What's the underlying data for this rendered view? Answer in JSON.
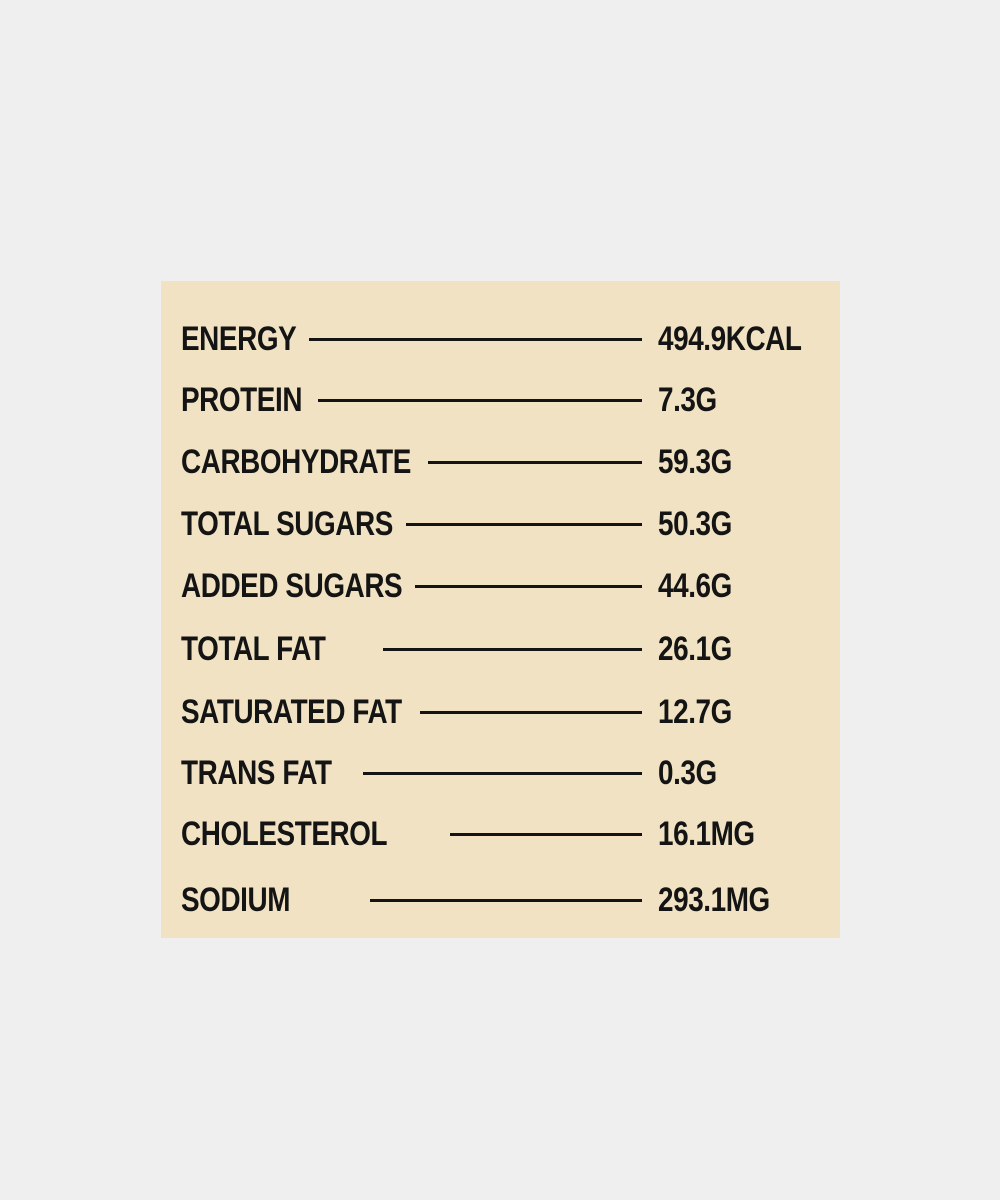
{
  "nutrition": {
    "rows": [
      {
        "label": "ENERGY",
        "value": "494.9KCAL"
      },
      {
        "label": "PROTEIN",
        "value": "7.3G"
      },
      {
        "label": "CARBOHYDRATE",
        "value": "59.3G"
      },
      {
        "label": "TOTAL SUGARS",
        "value": "50.3G"
      },
      {
        "label": "ADDED SUGARS",
        "value": "44.6G"
      },
      {
        "label": "TOTAL FAT",
        "value": "26.1G"
      },
      {
        "label": "SATURATED FAT",
        "value": "12.7G"
      },
      {
        "label": "TRANS FAT",
        "value": "0.3G"
      },
      {
        "label": "CHOLESTEROL",
        "value": "16.1MG"
      },
      {
        "label": "SODIUM",
        "value": "293.1MG"
      }
    ]
  }
}
